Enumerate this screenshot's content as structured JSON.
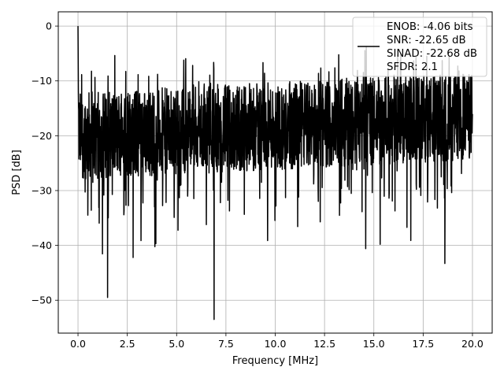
{
  "chart_data": {
    "type": "line",
    "title": "",
    "xlabel": "Frequency [MHz]",
    "ylabel": "PSD [dB]",
    "xlim": [
      -1.0,
      21.0
    ],
    "ylim": [
      -56.0,
      2.6
    ],
    "x_ticks": [
      0.0,
      2.5,
      5.0,
      7.5,
      10.0,
      12.5,
      15.0,
      17.5,
      20.0
    ],
    "x_tick_labels": [
      "0.0",
      "2.5",
      "5.0",
      "7.5",
      "10.0",
      "12.5",
      "15.0",
      "17.5",
      "20.0"
    ],
    "y_ticks": [
      0,
      -10,
      -20,
      -30,
      -40,
      -50
    ],
    "y_tick_labels": [
      "0",
      "−10",
      "−20",
      "−30",
      "−40",
      "−50"
    ],
    "grid": true,
    "legend_position": "top-right",
    "line_color": "#000000",
    "series": [
      {
        "name": "ENOB: -4.06 bits\nSNR: -22.65 dB\nSINAD: -22.68 dB\nSFDR: 2.1",
        "legend_lines": [
          "ENOB: -4.06 bits",
          "SNR: -22.65 dB",
          "SINAD: -22.68 dB",
          "SFDR: 2.1"
        ],
        "x_range": [
          0.0,
          20.0
        ],
        "num_points": 2048,
        "baseline_db": -20.0,
        "noise_band_db": [
          -31.0,
          -12.0
        ],
        "peak": {
          "x": 0.0,
          "y": 0.0
        },
        "notable_minima": [
          {
            "x": 1.5,
            "y": -49.5
          },
          {
            "x": 6.9,
            "y": -53.5
          },
          {
            "x": 18.6,
            "y": -43.3
          }
        ],
        "upper_envelope_at_end_db": -7.0
      }
    ]
  }
}
